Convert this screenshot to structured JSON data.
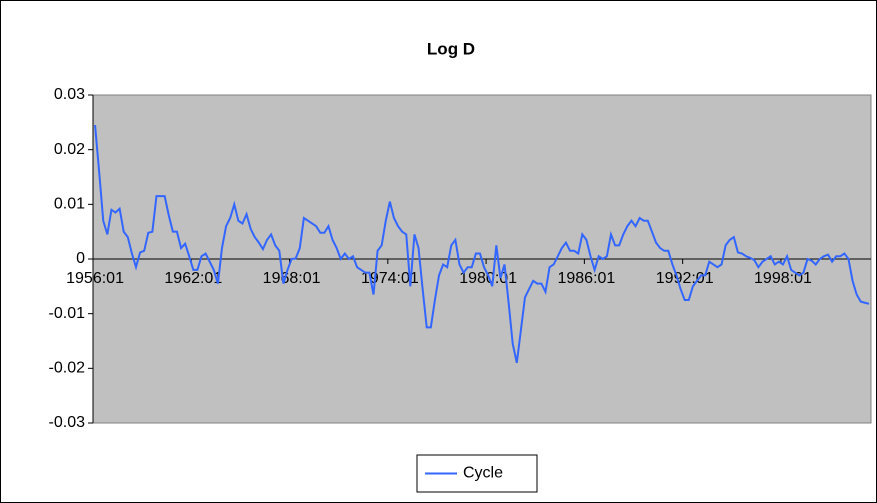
{
  "chart_data": {
    "type": "line",
    "title": "Log D",
    "categories": [
      "1956:01",
      null,
      null,
      null,
      null,
      null,
      null,
      null,
      null,
      null,
      null,
      null,
      null,
      null,
      null,
      null,
      null,
      null,
      null,
      null,
      null,
      null,
      null,
      null,
      "1962:01",
      null,
      null,
      null,
      null,
      null,
      null,
      null,
      null,
      null,
      null,
      null,
      null,
      null,
      null,
      null,
      null,
      null,
      null,
      null,
      null,
      null,
      null,
      null,
      "1968:01",
      null,
      null,
      null,
      null,
      null,
      null,
      null,
      null,
      null,
      null,
      null,
      null,
      null,
      null,
      null,
      null,
      null,
      null,
      null,
      null,
      null,
      null,
      null,
      "1974:01",
      null,
      null,
      null,
      null,
      null,
      null,
      null,
      null,
      null,
      null,
      null,
      null,
      null,
      null,
      null,
      null,
      null,
      null,
      null,
      null,
      null,
      null,
      null,
      "1980:01",
      null,
      null,
      null,
      null,
      null,
      null,
      null,
      null,
      null,
      null,
      null,
      null,
      null,
      null,
      null,
      null,
      null,
      null,
      null,
      null,
      null,
      null,
      null,
      "1986:01",
      null,
      null,
      null,
      null,
      null,
      null,
      null,
      null,
      null,
      null,
      null,
      null,
      null,
      null,
      null,
      null,
      null,
      null,
      null,
      null,
      null,
      null,
      null,
      "1992:01",
      null,
      null,
      null,
      null,
      null,
      null,
      null,
      null,
      null,
      null,
      null,
      null,
      null,
      null,
      null,
      null,
      null,
      null,
      null,
      null,
      null,
      null,
      null,
      "1998:01",
      null,
      null,
      null,
      null,
      null,
      null,
      null,
      null,
      null,
      null,
      null,
      null,
      null,
      null,
      null,
      null,
      null,
      null,
      null,
      null,
      null
    ],
    "series": [
      {
        "name": "Cycle",
        "color": "#3366ff",
        "values": [
          0.0245,
          0.016,
          0.007,
          0.0045,
          0.009,
          0.0085,
          0.0092,
          0.005,
          0.004,
          0.001,
          -0.0015,
          0.0012,
          0.0015,
          0.0048,
          0.005,
          0.0115,
          0.0115,
          0.0115,
          0.008,
          0.005,
          0.005,
          0.002,
          0.0028,
          0.0005,
          -0.002,
          -0.002,
          0.0005,
          0.001,
          -0.0005,
          -0.002,
          -0.0045,
          0.002,
          0.006,
          0.0075,
          0.01,
          0.007,
          0.0065,
          0.0082,
          0.0055,
          0.004,
          0.003,
          0.0018,
          0.0035,
          0.0045,
          0.0025,
          0.0015,
          -0.0045,
          -0.002,
          0.0,
          0.0001,
          0.002,
          0.0075,
          0.007,
          0.0065,
          0.006,
          0.0048,
          0.0048,
          0.006,
          0.0035,
          0.002,
          0.0,
          0.001,
          0.0,
          0.0005,
          -0.0015,
          -0.002,
          -0.0025,
          -0.0025,
          -0.0065,
          0.0015,
          0.0025,
          0.007,
          0.0105,
          0.0075,
          0.006,
          0.005,
          0.0045,
          -0.005,
          0.0045,
          0.002,
          -0.0055,
          -0.0125,
          -0.0125,
          -0.0075,
          -0.003,
          -0.001,
          -0.0015,
          0.0025,
          0.0035,
          -0.001,
          -0.0025,
          -0.0015,
          -0.0015,
          0.001,
          0.001,
          -0.0015,
          -0.003,
          -0.005,
          0.0025,
          -0.0035,
          -0.001,
          -0.008,
          -0.0155,
          -0.019,
          -0.013,
          -0.007,
          -0.0055,
          -0.004,
          -0.0045,
          -0.0045,
          -0.006,
          -0.0015,
          -0.001,
          0.0005,
          0.002,
          0.003,
          0.0015,
          0.0015,
          0.001,
          0.0045,
          0.0035,
          0.0005,
          -0.002,
          0.0005,
          0.0,
          0.0005,
          0.0045,
          0.0025,
          0.0025,
          0.0045,
          0.006,
          0.007,
          0.006,
          0.0075,
          0.007,
          0.007,
          0.005,
          0.003,
          0.002,
          0.0015,
          0.0015,
          -0.001,
          -0.003,
          -0.0055,
          -0.0075,
          -0.0075,
          -0.005,
          -0.004,
          -0.003,
          -0.003,
          -0.0005,
          -0.001,
          -0.0015,
          -0.001,
          0.0025,
          0.0035,
          0.004,
          0.0012,
          0.001,
          0.0005,
          0.0002,
          -0.0002,
          -0.0015,
          -0.0005,
          0.0,
          0.0005,
          -0.001,
          -0.0005,
          -0.001,
          0.0005,
          -0.002,
          -0.0025,
          -0.003,
          -0.0025,
          0.0,
          -0.0003,
          -0.001,
          0.0,
          0.0005,
          0.0008,
          -0.0005,
          0.0005,
          0.0005,
          0.001,
          0.0,
          -0.004,
          -0.0065,
          -0.0078,
          -0.008,
          -0.0082
        ]
      }
    ],
    "ylim": [
      -0.03,
      0.03
    ],
    "yticks": [
      -0.03,
      -0.02,
      -0.01,
      0,
      0.01,
      0.02,
      0.03
    ],
    "legend": "bottom"
  }
}
